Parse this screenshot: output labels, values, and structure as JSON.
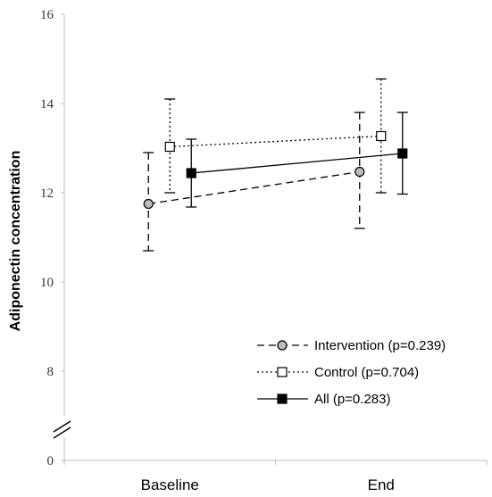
{
  "chart_data": {
    "type": "line",
    "ylabel": "Adiponectin concentration",
    "xlabel": "",
    "categories": [
      "Baseline",
      "End"
    ],
    "y_axis": {
      "ticks": [
        0,
        8,
        10,
        12,
        14,
        16
      ],
      "upper_range": [
        7,
        16
      ],
      "broken_axis": true
    },
    "series": [
      {
        "name": "Intervention (p=0.239)",
        "values": [
          11.75,
          12.47
        ],
        "error_low": [
          10.7,
          11.2
        ],
        "error_high": [
          12.9,
          13.8
        ],
        "line_style": "dashed",
        "marker": "circle",
        "marker_fill": "#bbbbbb"
      },
      {
        "name": "Control (p=0.704)",
        "values": [
          13.03,
          13.27
        ],
        "error_low": [
          12.0,
          12.0
        ],
        "error_high": [
          14.1,
          14.55
        ],
        "line_style": "dotted",
        "marker": "square",
        "marker_fill": "#ffffff"
      },
      {
        "name": "All (p=0.283)",
        "values": [
          12.44,
          12.88
        ],
        "error_low": [
          11.68,
          11.97
        ],
        "error_high": [
          13.2,
          13.8
        ],
        "line_style": "solid",
        "marker": "square",
        "marker_fill": "#000000"
      }
    ],
    "legend_position": "bottom-right",
    "grid": false
  }
}
